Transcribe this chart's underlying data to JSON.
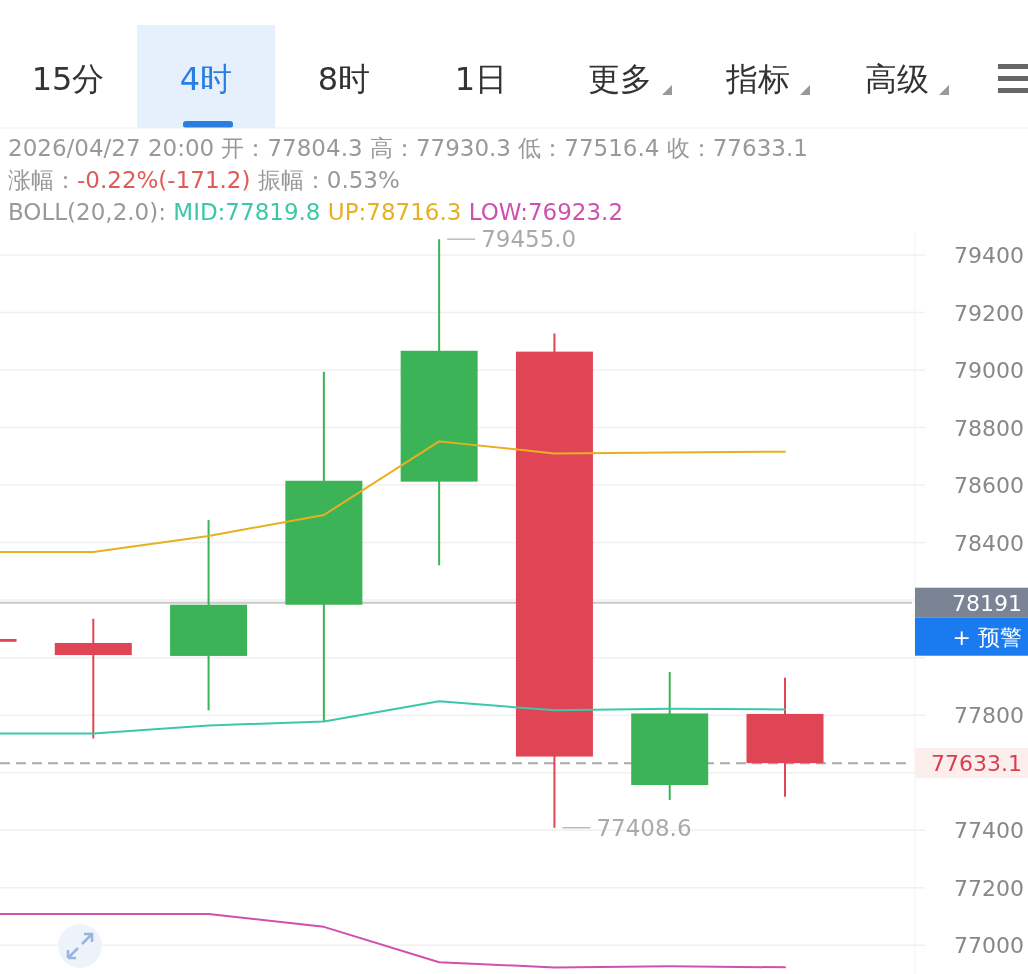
{
  "chart_data": {
    "type": "candlestick",
    "categories": [
      null,
      null,
      null,
      null,
      null,
      null,
      null,
      null
    ],
    "ohlc": [
      [
        78065,
        78070,
        78050,
        78055
      ],
      [
        78051,
        78135,
        77719,
        78009
      ],
      [
        78006,
        78479,
        77817,
        78184
      ],
      [
        78184,
        78994,
        77778,
        78615
      ],
      [
        78612,
        79455,
        78321,
        79067
      ],
      [
        79064,
        79127,
        77408.6,
        77656
      ],
      [
        77557,
        77950,
        77505,
        77806
      ],
      [
        77804.3,
        77930.3,
        77516.4,
        77633.1
      ]
    ],
    "colors": [
      "#e04555",
      "#e04555",
      "#3bb356",
      "#3bb356",
      "#3bb356",
      "#e04555",
      "#3bb356",
      "#e04555"
    ],
    "series": [
      {
        "name": "MID:77819.8",
        "type": "line",
        "color": "#3cc8a8",
        "values": [
          77736,
          77736,
          77764,
          77778,
          77848,
          77817,
          77822,
          77819.8
        ]
      },
      {
        "name": "UP:78716.3",
        "type": "line",
        "color": "#e8b020",
        "values": [
          78367,
          78367,
          78423,
          78496,
          78752,
          78710,
          78713,
          78716.3
        ]
      },
      {
        "name": "LOW:76923.2",
        "type": "line",
        "color": "#d050b0",
        "values": [
          77109,
          77109,
          77109,
          77064,
          76941,
          76923,
          76927,
          76923.2
        ]
      }
    ],
    "ylim": [
      76900,
      79480
    ],
    "yticks": [
      77000,
      77200,
      77400,
      {
        "value": 77600,
        "label": null
      },
      77800,
      {
        "value": 78000,
        "label": null
      },
      {
        "value": 78200,
        "label": null
      },
      78400,
      78600,
      78800,
      79000,
      79200,
      79400
    ],
    "grid": "y",
    "legend": "top",
    "ref_lines": [
      {
        "axis": "y",
        "value": 78191,
        "label": "78191",
        "color": "#c8c8c8",
        "line_style": "solid"
      },
      {
        "axis": "y",
        "value": 77633.1,
        "label": "77633.1",
        "color": "#aaaaaa",
        "line_style": "dashed"
      }
    ],
    "annotations": [
      "2026/04/27 20:00 开：77804.3 高：77930.3 低：77516.4 收：77633.1",
      "涨幅：",
      "-0.22%(-171.2)",
      " 振幅：0.53%",
      "BOLL(20,2.0): ",
      "79455.0",
      "77408.6",
      "15分",
      "4时",
      "8时",
      "1日",
      "更多",
      "指标",
      "高级",
      "+ 预警"
    ]
  }
}
